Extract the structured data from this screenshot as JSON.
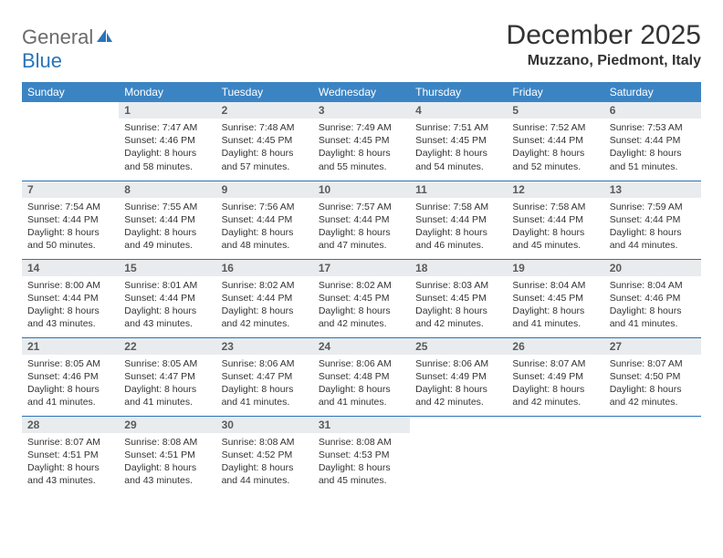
{
  "logo": {
    "part1": "General",
    "part2": "Blue"
  },
  "title": "December 2025",
  "location": "Muzzano, Piedmont, Italy",
  "colors": {
    "header_bg": "#3b84c4",
    "header_text": "#ffffff",
    "daynum_bg": "#e9ecef",
    "rule": "#2a74b8",
    "logo_gray": "#6b6b6b",
    "logo_blue": "#2a74b8"
  },
  "day_headers": [
    "Sunday",
    "Monday",
    "Tuesday",
    "Wednesday",
    "Thursday",
    "Friday",
    "Saturday"
  ],
  "weeks": [
    [
      {
        "n": "",
        "sunrise": "",
        "sunset": "",
        "daylight": ""
      },
      {
        "n": "1",
        "sunrise": "7:47 AM",
        "sunset": "4:46 PM",
        "daylight": "8 hours and 58 minutes."
      },
      {
        "n": "2",
        "sunrise": "7:48 AM",
        "sunset": "4:45 PM",
        "daylight": "8 hours and 57 minutes."
      },
      {
        "n": "3",
        "sunrise": "7:49 AM",
        "sunset": "4:45 PM",
        "daylight": "8 hours and 55 minutes."
      },
      {
        "n": "4",
        "sunrise": "7:51 AM",
        "sunset": "4:45 PM",
        "daylight": "8 hours and 54 minutes."
      },
      {
        "n": "5",
        "sunrise": "7:52 AM",
        "sunset": "4:44 PM",
        "daylight": "8 hours and 52 minutes."
      },
      {
        "n": "6",
        "sunrise": "7:53 AM",
        "sunset": "4:44 PM",
        "daylight": "8 hours and 51 minutes."
      }
    ],
    [
      {
        "n": "7",
        "sunrise": "7:54 AM",
        "sunset": "4:44 PM",
        "daylight": "8 hours and 50 minutes."
      },
      {
        "n": "8",
        "sunrise": "7:55 AM",
        "sunset": "4:44 PM",
        "daylight": "8 hours and 49 minutes."
      },
      {
        "n": "9",
        "sunrise": "7:56 AM",
        "sunset": "4:44 PM",
        "daylight": "8 hours and 48 minutes."
      },
      {
        "n": "10",
        "sunrise": "7:57 AM",
        "sunset": "4:44 PM",
        "daylight": "8 hours and 47 minutes."
      },
      {
        "n": "11",
        "sunrise": "7:58 AM",
        "sunset": "4:44 PM",
        "daylight": "8 hours and 46 minutes."
      },
      {
        "n": "12",
        "sunrise": "7:58 AM",
        "sunset": "4:44 PM",
        "daylight": "8 hours and 45 minutes."
      },
      {
        "n": "13",
        "sunrise": "7:59 AM",
        "sunset": "4:44 PM",
        "daylight": "8 hours and 44 minutes."
      }
    ],
    [
      {
        "n": "14",
        "sunrise": "8:00 AM",
        "sunset": "4:44 PM",
        "daylight": "8 hours and 43 minutes."
      },
      {
        "n": "15",
        "sunrise": "8:01 AM",
        "sunset": "4:44 PM",
        "daylight": "8 hours and 43 minutes."
      },
      {
        "n": "16",
        "sunrise": "8:02 AM",
        "sunset": "4:44 PM",
        "daylight": "8 hours and 42 minutes."
      },
      {
        "n": "17",
        "sunrise": "8:02 AM",
        "sunset": "4:45 PM",
        "daylight": "8 hours and 42 minutes."
      },
      {
        "n": "18",
        "sunrise": "8:03 AM",
        "sunset": "4:45 PM",
        "daylight": "8 hours and 42 minutes."
      },
      {
        "n": "19",
        "sunrise": "8:04 AM",
        "sunset": "4:45 PM",
        "daylight": "8 hours and 41 minutes."
      },
      {
        "n": "20",
        "sunrise": "8:04 AM",
        "sunset": "4:46 PM",
        "daylight": "8 hours and 41 minutes."
      }
    ],
    [
      {
        "n": "21",
        "sunrise": "8:05 AM",
        "sunset": "4:46 PM",
        "daylight": "8 hours and 41 minutes."
      },
      {
        "n": "22",
        "sunrise": "8:05 AM",
        "sunset": "4:47 PM",
        "daylight": "8 hours and 41 minutes."
      },
      {
        "n": "23",
        "sunrise": "8:06 AM",
        "sunset": "4:47 PM",
        "daylight": "8 hours and 41 minutes."
      },
      {
        "n": "24",
        "sunrise": "8:06 AM",
        "sunset": "4:48 PM",
        "daylight": "8 hours and 41 minutes."
      },
      {
        "n": "25",
        "sunrise": "8:06 AM",
        "sunset": "4:49 PM",
        "daylight": "8 hours and 42 minutes."
      },
      {
        "n": "26",
        "sunrise": "8:07 AM",
        "sunset": "4:49 PM",
        "daylight": "8 hours and 42 minutes."
      },
      {
        "n": "27",
        "sunrise": "8:07 AM",
        "sunset": "4:50 PM",
        "daylight": "8 hours and 42 minutes."
      }
    ],
    [
      {
        "n": "28",
        "sunrise": "8:07 AM",
        "sunset": "4:51 PM",
        "daylight": "8 hours and 43 minutes."
      },
      {
        "n": "29",
        "sunrise": "8:08 AM",
        "sunset": "4:51 PM",
        "daylight": "8 hours and 43 minutes."
      },
      {
        "n": "30",
        "sunrise": "8:08 AM",
        "sunset": "4:52 PM",
        "daylight": "8 hours and 44 minutes."
      },
      {
        "n": "31",
        "sunrise": "8:08 AM",
        "sunset": "4:53 PM",
        "daylight": "8 hours and 45 minutes."
      },
      {
        "n": "",
        "sunrise": "",
        "sunset": "",
        "daylight": ""
      },
      {
        "n": "",
        "sunrise": "",
        "sunset": "",
        "daylight": ""
      },
      {
        "n": "",
        "sunrise": "",
        "sunset": "",
        "daylight": ""
      }
    ]
  ],
  "labels": {
    "sunrise": "Sunrise: ",
    "sunset": "Sunset: ",
    "daylight": "Daylight: "
  }
}
